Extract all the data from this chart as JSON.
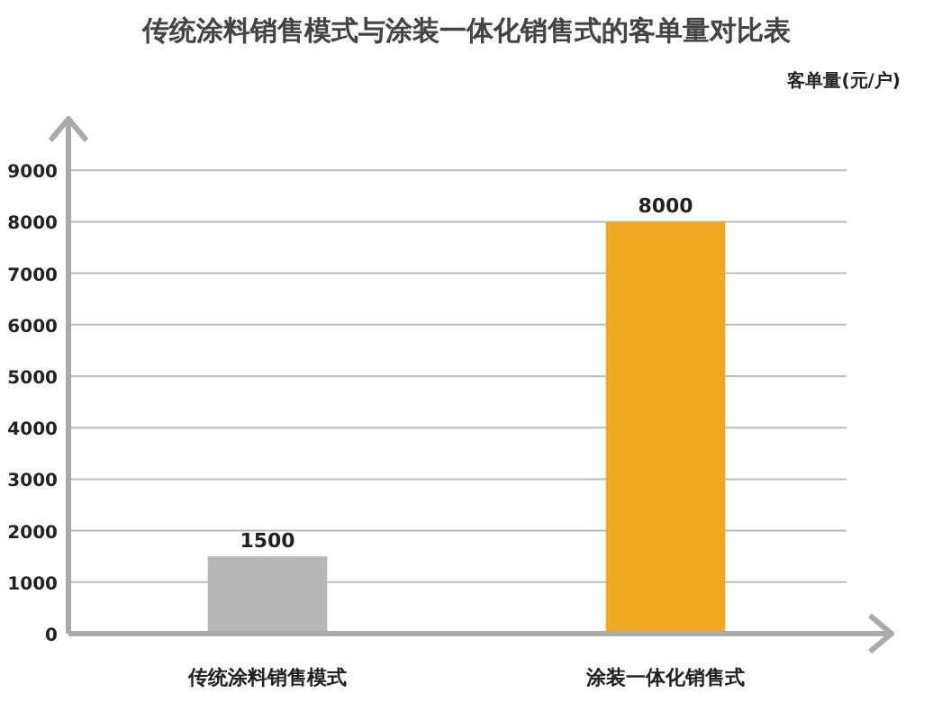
{
  "chart_data": {
    "type": "bar",
    "title": "传统涂料销售模式与涂装一体化销售式的客单量对比表",
    "ylabel": "客单量(元/户)",
    "categories": [
      "传统涂料销售模式",
      "涂装一体化销售式"
    ],
    "values": [
      1500,
      8000
    ],
    "colors": [
      "#b8b8b8",
      "#f0a820"
    ],
    "ylim": [
      0,
      10000
    ],
    "yticks": [
      0,
      1000,
      2000,
      3000,
      4000,
      5000,
      6000,
      7000,
      8000,
      9000
    ],
    "grid": "y",
    "data_labels": true
  }
}
